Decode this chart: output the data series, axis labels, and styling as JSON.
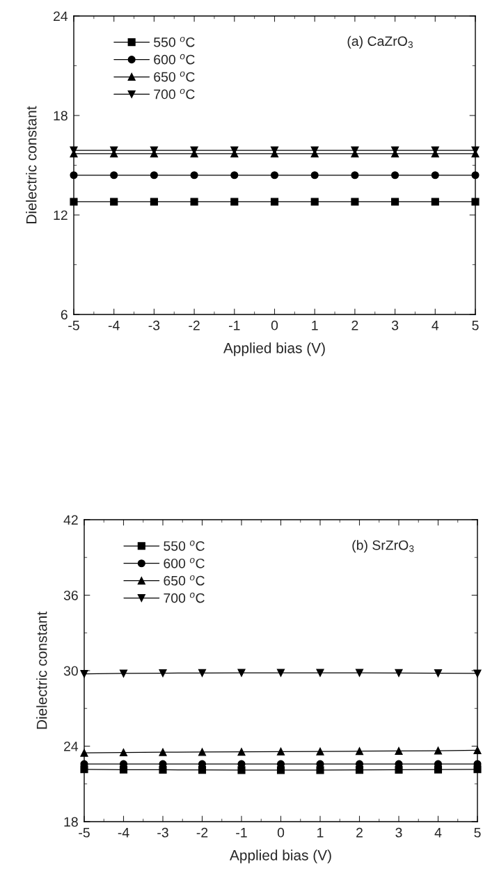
{
  "chart_data": [
    {
      "type": "line",
      "annotations": [
        "(a) CaZrO$_{3}$"
      ],
      "xlabel": "Applied bias (V)",
      "ylabel": "Dielectric constant",
      "x": [
        -5,
        -4,
        -3,
        -2,
        -1,
        0,
        1,
        2,
        3,
        4,
        5
      ],
      "xlim": [
        -5,
        5
      ],
      "xticks": [
        -5,
        -4,
        -3,
        -2,
        -1,
        0,
        1,
        2,
        3,
        4,
        5
      ],
      "ylim": [
        6,
        24
      ],
      "yticks": [
        6,
        12,
        18,
        24
      ],
      "legend": "top left",
      "grid": false,
      "series": [
        {
          "name": "550 $^{o}$C",
          "color": "#000000",
          "marker": "square",
          "values": [
            12.8,
            12.8,
            12.8,
            12.8,
            12.8,
            12.8,
            12.8,
            12.8,
            12.8,
            12.8,
            12.8
          ]
        },
        {
          "name": "600 $^{o}$C",
          "color": "#000000",
          "marker": "circle",
          "values": [
            14.4,
            14.4,
            14.4,
            14.4,
            14.4,
            14.4,
            14.4,
            14.4,
            14.4,
            14.4,
            14.4
          ]
        },
        {
          "name": "650 $^{o}$C",
          "color": "#000000",
          "marker": "triangle",
          "values": [
            15.7,
            15.7,
            15.7,
            15.7,
            15.7,
            15.7,
            15.7,
            15.7,
            15.7,
            15.7,
            15.7
          ]
        },
        {
          "name": "700 $^{o}$C",
          "color": "#000000",
          "marker": "triangle_down",
          "values": [
            15.9,
            15.9,
            15.9,
            15.9,
            15.9,
            15.9,
            15.9,
            15.9,
            15.9,
            15.9,
            15.9
          ]
        }
      ]
    },
    {
      "type": "line",
      "annotations": [
        "(b) SrZrO$_{3}$"
      ],
      "xlabel": "Applied bias (V)",
      "ylabel": "Dielectric constant",
      "x": [
        -5,
        -4,
        -3,
        -2,
        -1,
        0,
        1,
        2,
        3,
        4,
        5
      ],
      "xlim": [
        -5,
        5
      ],
      "xticks": [
        -5,
        -4,
        -3,
        -2,
        -1,
        0,
        1,
        2,
        3,
        4,
        5
      ],
      "ylim": [
        18,
        42
      ],
      "yticks": [
        18,
        24,
        30,
        36,
        42
      ],
      "legend": "top left",
      "grid": false,
      "series": [
        {
          "name": "550 $^{o}$C",
          "color": "#000000",
          "marker": "square",
          "values": [
            22.16,
            22.13,
            22.12,
            22.11,
            22.1,
            22.1,
            22.1,
            22.11,
            22.12,
            22.14,
            22.16
          ]
        },
        {
          "name": "600 $^{o}$C",
          "color": "#000000",
          "marker": "circle",
          "values": [
            22.58,
            22.58,
            22.58,
            22.58,
            22.58,
            22.58,
            22.58,
            22.58,
            22.58,
            22.58,
            22.58
          ]
        },
        {
          "name": "650 $^{o}$C",
          "color": "#000000",
          "marker": "triangle",
          "values": [
            23.47,
            23.5,
            23.52,
            23.53,
            23.55,
            23.57,
            23.58,
            23.6,
            23.62,
            23.64,
            23.67
          ]
        },
        {
          "name": "700 $^{o}$C",
          "color": "#000000",
          "marker": "triangle_down",
          "values": [
            29.75,
            29.78,
            29.8,
            29.82,
            29.83,
            29.83,
            29.83,
            29.83,
            29.82,
            29.8,
            29.78
          ]
        }
      ]
    }
  ]
}
